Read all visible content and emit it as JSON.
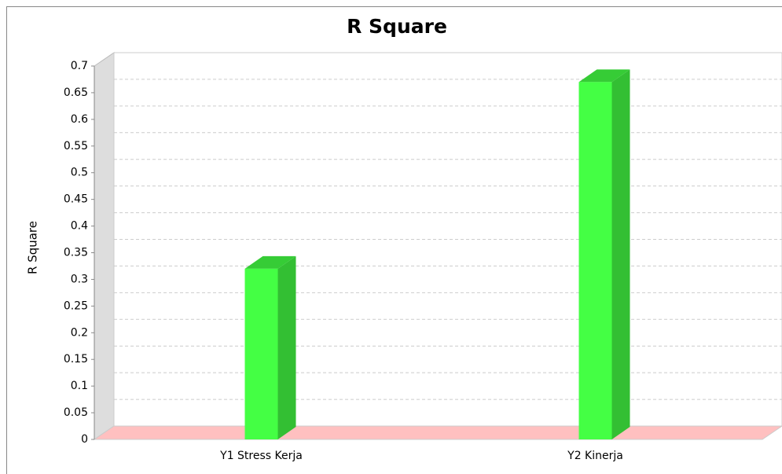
{
  "chart_data": {
    "type": "bar",
    "title": "R Square",
    "y_label": "R Square",
    "categories": [
      "Y1 Stress Kerja",
      "Y2 Kinerja"
    ],
    "values": [
      0.32,
      0.67
    ],
    "color": "#44ff44",
    "ylim": [
      0,
      0.7
    ],
    "yticks": [
      0,
      0.05,
      0.1,
      0.15,
      0.2,
      0.25,
      0.3,
      0.35,
      0.4,
      0.45,
      0.5,
      0.55,
      0.6,
      0.65,
      0.7
    ],
    "grid": true
  }
}
